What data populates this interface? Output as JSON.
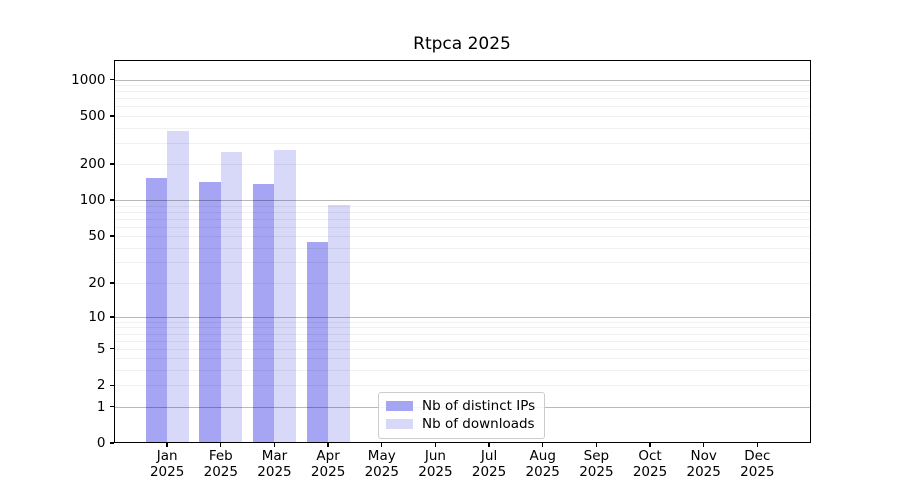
{
  "title": "Rtpca 2025",
  "chart_data": {
    "type": "bar",
    "title": "Rtpca 2025",
    "categories": [
      "Jan",
      "Feb",
      "Mar",
      "Apr",
      "May",
      "Jun",
      "Jul",
      "Aug",
      "Sep",
      "Oct",
      "Nov",
      "Dec"
    ],
    "year_label": "2025",
    "series": [
      {
        "name": "Nb of distinct IPs",
        "color": "#a5a5f3",
        "values": [
          150,
          140,
          135,
          44,
          0,
          0,
          0,
          0,
          0,
          0,
          0,
          0
        ]
      },
      {
        "name": "Nb of downloads",
        "color": "#d8d8f8",
        "values": [
          367,
          245,
          258,
          90,
          0,
          0,
          0,
          0,
          0,
          0,
          0,
          0
        ]
      }
    ],
    "xlabel": "",
    "ylabel": "",
    "y_axis": {
      "scale": "log1p",
      "tick_values": [
        1000,
        500,
        200,
        100,
        50,
        20,
        10,
        5,
        2,
        1,
        0
      ],
      "max": 1450,
      "min": 0,
      "major_grid_values": [
        1,
        10,
        100,
        1000
      ],
      "minor_grid_values": [
        2,
        3,
        4,
        5,
        6,
        7,
        8,
        9,
        20,
        30,
        40,
        50,
        60,
        70,
        80,
        90,
        200,
        300,
        400,
        500,
        600,
        700,
        800,
        900
      ]
    },
    "grid": "on",
    "legend_position": "lower center"
  },
  "colors": {
    "major_gridline": "#bababa",
    "minor_gridline": "#f0f0f0",
    "axis": "#000000",
    "background": "#ffffff"
  }
}
